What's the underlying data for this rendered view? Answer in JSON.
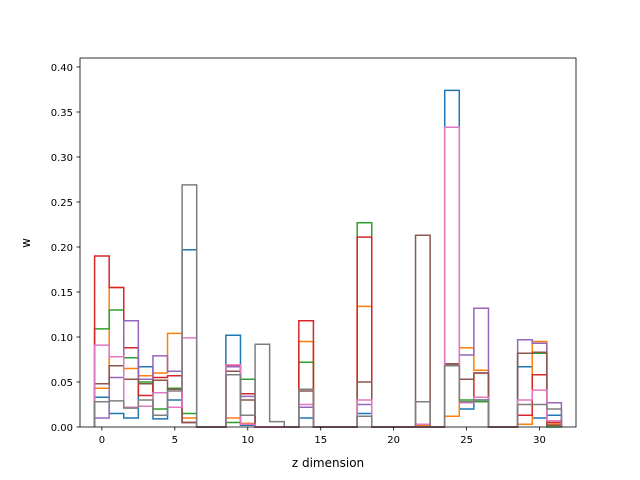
{
  "chart_data": {
    "type": "step-histogram",
    "title": "",
    "xlabel": "z dimension",
    "ylabel": "w",
    "xlim": [
      -1.5,
      32.5
    ],
    "ylim": [
      0,
      0.41
    ],
    "xticks": [
      0,
      5,
      10,
      15,
      20,
      25,
      30
    ],
    "yticks": [
      0.0,
      0.05,
      0.1,
      0.15,
      0.2,
      0.25,
      0.3,
      0.35,
      0.4
    ],
    "ytick_labels": [
      "0.00",
      "0.05",
      "0.10",
      "0.15",
      "0.20",
      "0.25",
      "0.30",
      "0.35",
      "0.40"
    ],
    "grid": false,
    "legend": "none",
    "x": [
      0,
      1,
      2,
      3,
      4,
      5,
      6,
      7,
      8,
      9,
      10,
      11,
      12,
      13,
      14,
      15,
      16,
      17,
      18,
      19,
      20,
      21,
      22,
      23,
      24,
      25,
      26,
      27,
      28,
      29,
      30,
      31
    ],
    "series": [
      {
        "color": "#1f77b4",
        "values": [
          0.033,
          0.015,
          0.01,
          0.067,
          0.009,
          0.03,
          0.197,
          0,
          0,
          0.102,
          0.002,
          0,
          0,
          0,
          0.01,
          0,
          0,
          0,
          0.015,
          0,
          0,
          0,
          0.002,
          0,
          0.374,
          0.02,
          0.03,
          0,
          0,
          0.067,
          0.01,
          0.013
        ]
      },
      {
        "color": "#ff7f0e",
        "values": [
          0.043,
          0.155,
          0.065,
          0.057,
          0.06,
          0.104,
          0.01,
          0,
          0,
          0.01,
          0.004,
          0,
          0,
          0,
          0.095,
          0,
          0,
          0,
          0.134,
          0,
          0,
          0,
          0.002,
          0,
          0.012,
          0.088,
          0.063,
          0,
          0,
          0.003,
          0.095,
          0.003
        ]
      },
      {
        "color": "#2ca02c",
        "values": [
          0.109,
          0.13,
          0.077,
          0.05,
          0.02,
          0.043,
          0.015,
          0,
          0,
          0.005,
          0.053,
          0,
          0,
          0,
          0.072,
          0,
          0,
          0,
          0.227,
          0,
          0,
          0,
          0,
          0,
          0.07,
          0.03,
          0.028,
          0,
          0,
          0.082,
          0.082,
          0
        ]
      },
      {
        "color": "#d62728",
        "values": [
          0.19,
          0.155,
          0.088,
          0.035,
          0.055,
          0.057,
          0.005,
          0,
          0,
          0.068,
          0.037,
          0,
          0,
          0,
          0.118,
          0,
          0,
          0,
          0.211,
          0,
          0,
          0,
          0,
          0,
          0.07,
          0.028,
          0.06,
          0,
          0,
          0.013,
          0.058,
          0.005
        ]
      },
      {
        "color": "#9467bd",
        "values": [
          0.01,
          0.055,
          0.118,
          0.053,
          0.079,
          0.062,
          0.005,
          0,
          0,
          0.067,
          0.034,
          0,
          0,
          0,
          0.022,
          0,
          0,
          0,
          0.025,
          0,
          0,
          0,
          0,
          0,
          0.07,
          0.08,
          0.132,
          0,
          0,
          0.097,
          0.093,
          0.027
        ]
      },
      {
        "color": "#8c564b",
        "values": [
          0.048,
          0.068,
          0.053,
          0.048,
          0.052,
          0.042,
          0.005,
          0,
          0,
          0.062,
          0.03,
          0,
          0,
          0,
          0.04,
          0,
          0,
          0,
          0.05,
          0,
          0,
          0,
          0.213,
          0,
          0.07,
          0.053,
          0.06,
          0,
          0,
          0.082,
          0.083,
          0.002
        ]
      },
      {
        "color": "#e377c2",
        "values": [
          0.091,
          0.078,
          0.022,
          0.023,
          0.038,
          0.022,
          0.099,
          0,
          0,
          0.069,
          0.003,
          0,
          0,
          0,
          0.025,
          0,
          0,
          0,
          0.03,
          0,
          0,
          0,
          0.003,
          0,
          0.333,
          0.027,
          0.033,
          0,
          0,
          0.03,
          0.041,
          0.007
        ]
      },
      {
        "color": "#7f7f7f",
        "values": [
          0.028,
          0.029,
          0.021,
          0.03,
          0.013,
          0.04,
          0.269,
          0,
          0,
          0.058,
          0.013,
          0.092,
          0.006,
          0,
          0.042,
          0,
          0,
          0,
          0.012,
          0,
          0,
          0,
          0.028,
          0,
          0.068,
          0.028,
          0.03,
          0,
          0,
          0.025,
          0.025,
          0.02
        ]
      }
    ]
  }
}
